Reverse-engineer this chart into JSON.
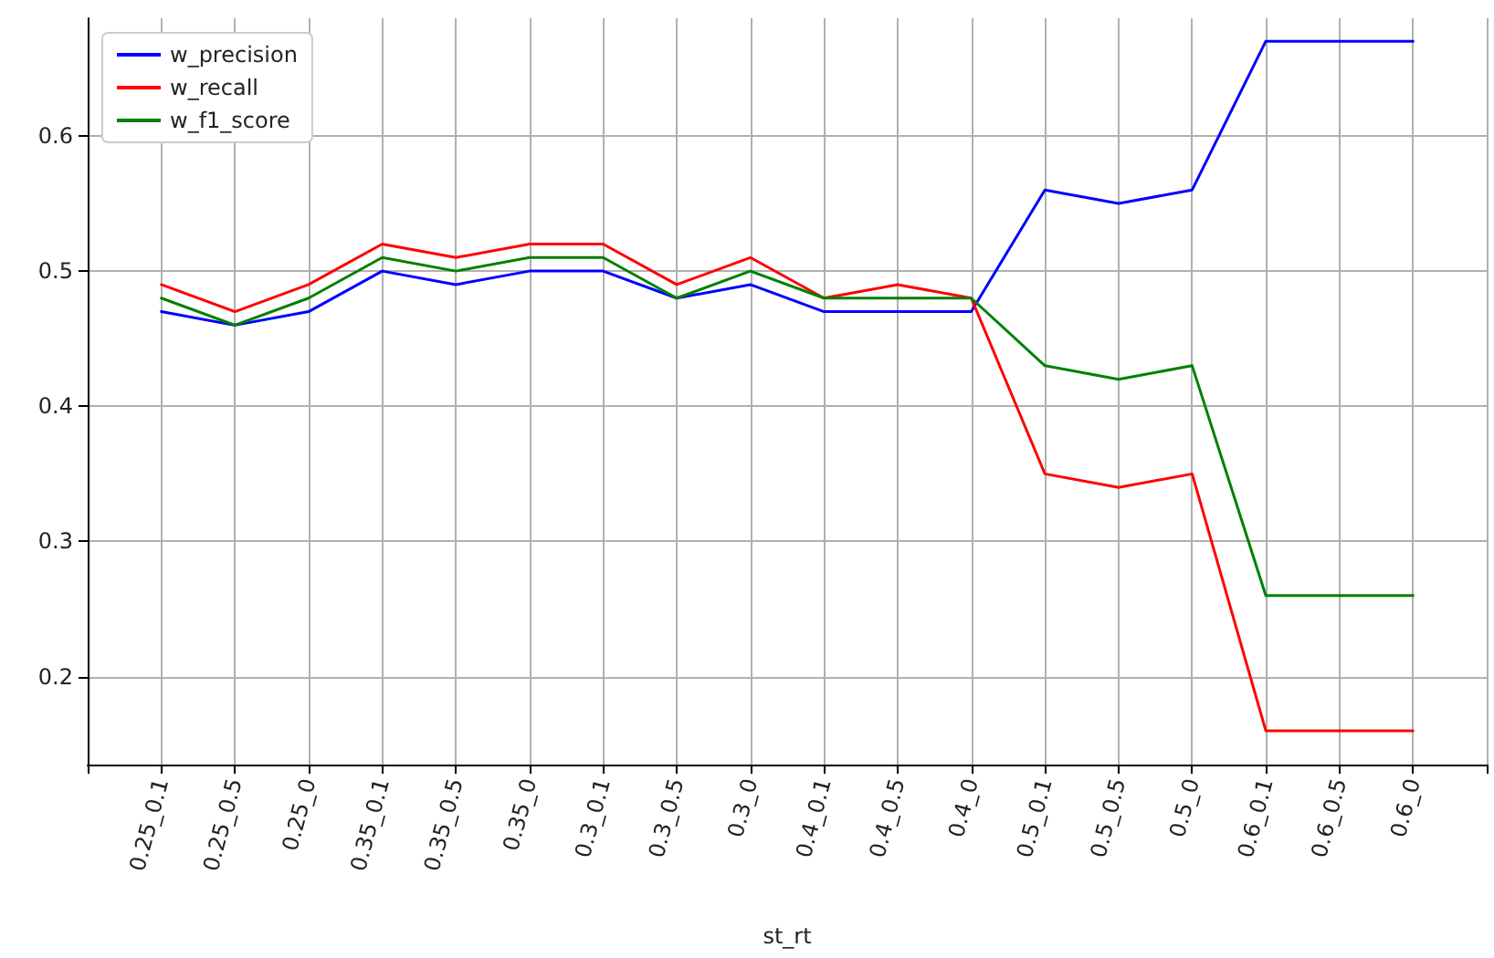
{
  "chart_data": {
    "type": "line",
    "xlabel": "st_rt",
    "categories": [
      "0.25_0.1",
      "0.25_0.5",
      "0.25_0",
      "0.35_0.1",
      "0.35_0.5",
      "0.35_0",
      "0.3_0.1",
      "0.3_0.5",
      "0.3_0",
      "0.4_0.1",
      "0.4_0.5",
      "0.4_0",
      "0.5_0.1",
      "0.5_0.5",
      "0.5_0",
      "0.6_0.1",
      "0.6_0.5",
      "0.6_0"
    ],
    "series": [
      {
        "name": "w_precision",
        "color": "#0000ff",
        "values": [
          0.47,
          0.46,
          0.47,
          0.5,
          0.49,
          0.5,
          0.5,
          0.48,
          0.49,
          0.47,
          0.47,
          0.47,
          0.56,
          0.55,
          0.56,
          0.67,
          0.67,
          0.67
        ]
      },
      {
        "name": "w_recall",
        "color": "#ff0000",
        "values": [
          0.49,
          0.47,
          0.49,
          0.52,
          0.51,
          0.52,
          0.52,
          0.49,
          0.51,
          0.48,
          0.49,
          0.48,
          0.35,
          0.34,
          0.35,
          0.16,
          0.16,
          0.16
        ]
      },
      {
        "name": "w_f1_score",
        "color": "#008000",
        "values": [
          0.48,
          0.46,
          0.48,
          0.51,
          0.5,
          0.51,
          0.51,
          0.48,
          0.5,
          0.48,
          0.48,
          0.48,
          0.43,
          0.42,
          0.43,
          0.26,
          0.26,
          0.26
        ]
      }
    ],
    "ylim": [
      0.135,
      0.687
    ],
    "yticks": [
      0.2,
      0.3,
      0.4,
      0.5,
      0.6
    ],
    "grid": true,
    "legend": "top left",
    "marker": "none",
    "line_style": "solid"
  }
}
